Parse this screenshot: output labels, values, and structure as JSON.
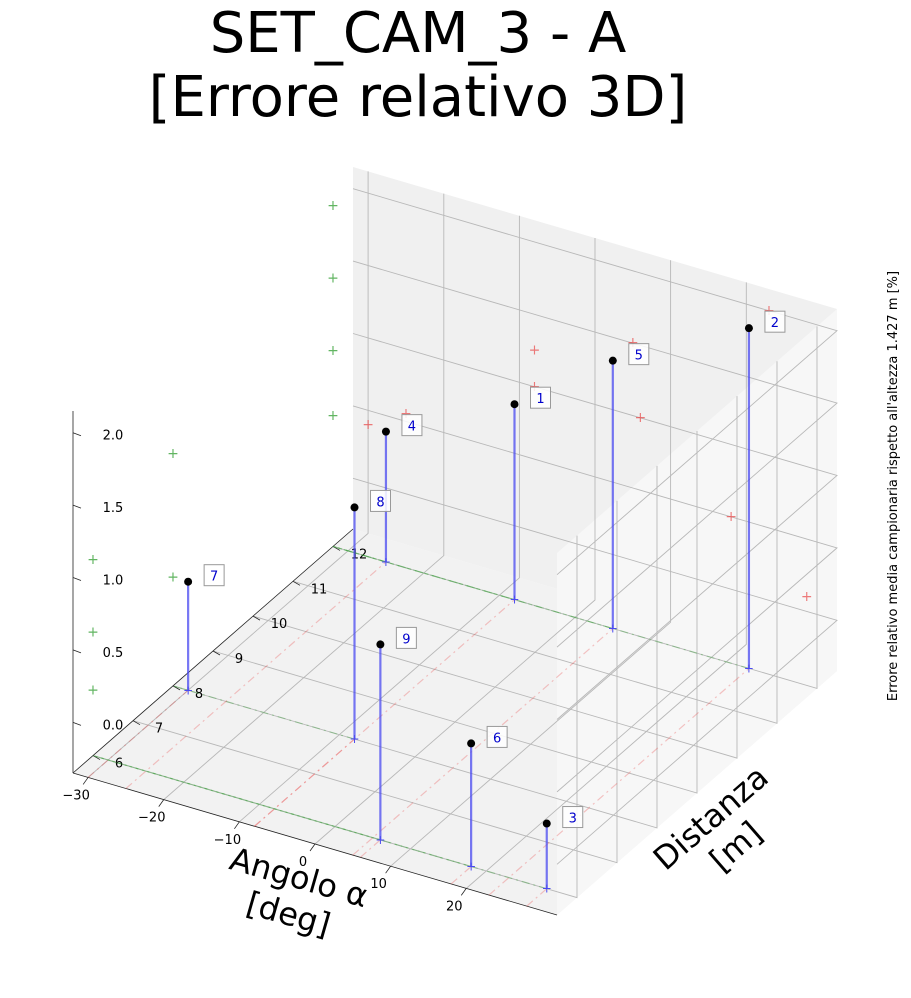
{
  "title_line1": "SET_CAM_3 - A",
  "title_line2": "[Errore relativo 3D]",
  "chart_data": {
    "type": "scatter",
    "title": "SET_CAM_3 - A\n[Errore relativo 3D]",
    "xlabel": "Angolo α\n[deg]",
    "ylabel": "Distanza\n[m]",
    "zlabel": "Errore relativo media campionaria rispetto all'altezza 1.427 m [%]",
    "xlim": [
      -32,
      32
    ],
    "ylim": [
      5.5,
      12.5
    ],
    "zlim": [
      -0.35,
      2.15
    ],
    "x_ticks": [
      "−30",
      "−20",
      "−10",
      "0",
      "10",
      "20"
    ],
    "y_ticks": [
      "6",
      "7",
      "8",
      "9",
      "10",
      "11",
      "12"
    ],
    "z_ticks": [
      "0.0",
      "0.5",
      "1.0",
      "1.5",
      "2.0"
    ],
    "grid": true,
    "points": [
      {
        "label": "1",
        "x": -8,
        "y": 12,
        "z": 1.0
      },
      {
        "label": "2",
        "x": 23,
        "y": 12,
        "z": 2.0
      },
      {
        "label": "3",
        "x": 28,
        "y": 6,
        "z": 0.1
      },
      {
        "label": "4",
        "x": -25,
        "y": 12,
        "z": 0.55
      },
      {
        "label": "5",
        "x": 5,
        "y": 12,
        "z": 1.5
      },
      {
        "label": "6",
        "x": 18,
        "y": 6,
        "z": 0.5
      },
      {
        "label": "7",
        "x": -30,
        "y": 8,
        "z": 0.4
      },
      {
        "label": "8",
        "x": -8,
        "y": 8,
        "z": 1.25
      },
      {
        "label": "9",
        "x": 6,
        "y": 6,
        "z": 1.0
      }
    ],
    "colors": {
      "points": "#000000",
      "stems": "#4a4af0",
      "x_projection": "#e84545",
      "y_projection": "#3aa33a",
      "labels": "#0000cc"
    }
  }
}
